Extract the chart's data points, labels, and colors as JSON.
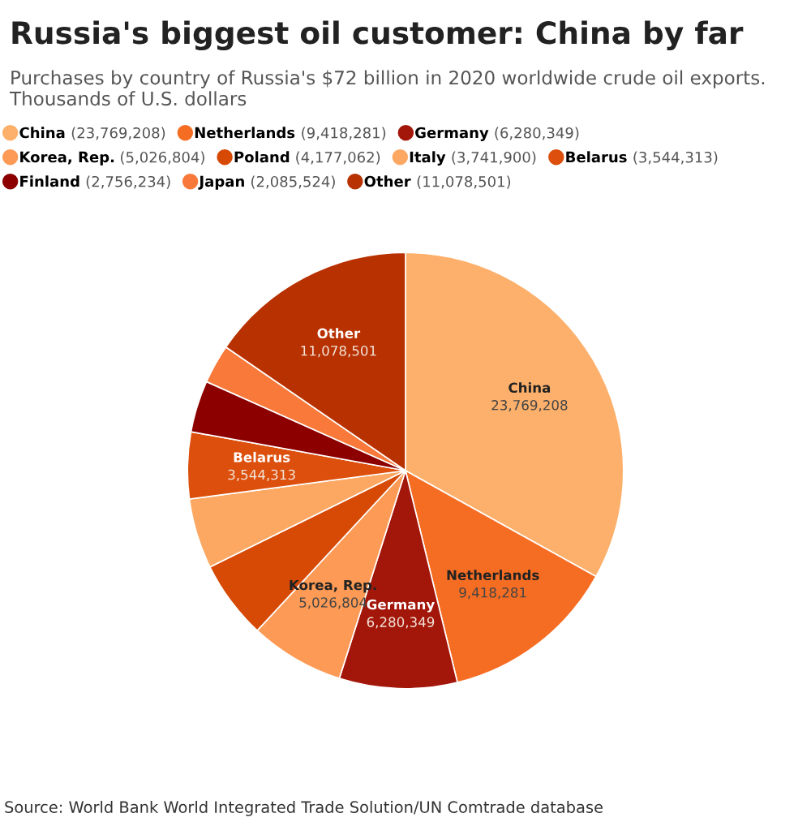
{
  "chart_data": {
    "type": "pie",
    "title": "Russia's biggest oil customer: China by far",
    "subtitle": "Purchases by country of Russia's $72 billion in 2020 worldwide crude oil exports. Thousands of U.S. dollars",
    "categories": [
      "China",
      "Netherlands",
      "Germany",
      "Korea, Rep.",
      "Poland",
      "Italy",
      "Belarus",
      "Finland",
      "Japan",
      "Other"
    ],
    "values": [
      23769208,
      9418281,
      6280349,
      5026804,
      4177062,
      3741900,
      3544313,
      2756234,
      2085524,
      11078501
    ],
    "colors": [
      "#fdb06b",
      "#f56d23",
      "#a3170a",
      "#fd9a55",
      "#d64a06",
      "#fca863",
      "#dc4f0c",
      "#8c0000",
      "#f8793a",
      "#b83100"
    ],
    "value_labels": [
      "23,769,208",
      "9,418,281",
      "6,280,349",
      "5,026,804",
      null,
      null,
      "3,544,313",
      null,
      null,
      "11,078,501"
    ],
    "legend": "top",
    "annotations": [
      "Source: World Bank World Integrated Trade Solution/UN Comtrade database",
      "(23,769,208)",
      "(9,418,281)",
      "(6,280,349)",
      "(5,026,804)",
      "(4,177,062)",
      "(3,741,900)",
      "(3,544,313)",
      "(2,756,234)",
      "(2,085,524)",
      "(11,078,501)"
    ]
  }
}
